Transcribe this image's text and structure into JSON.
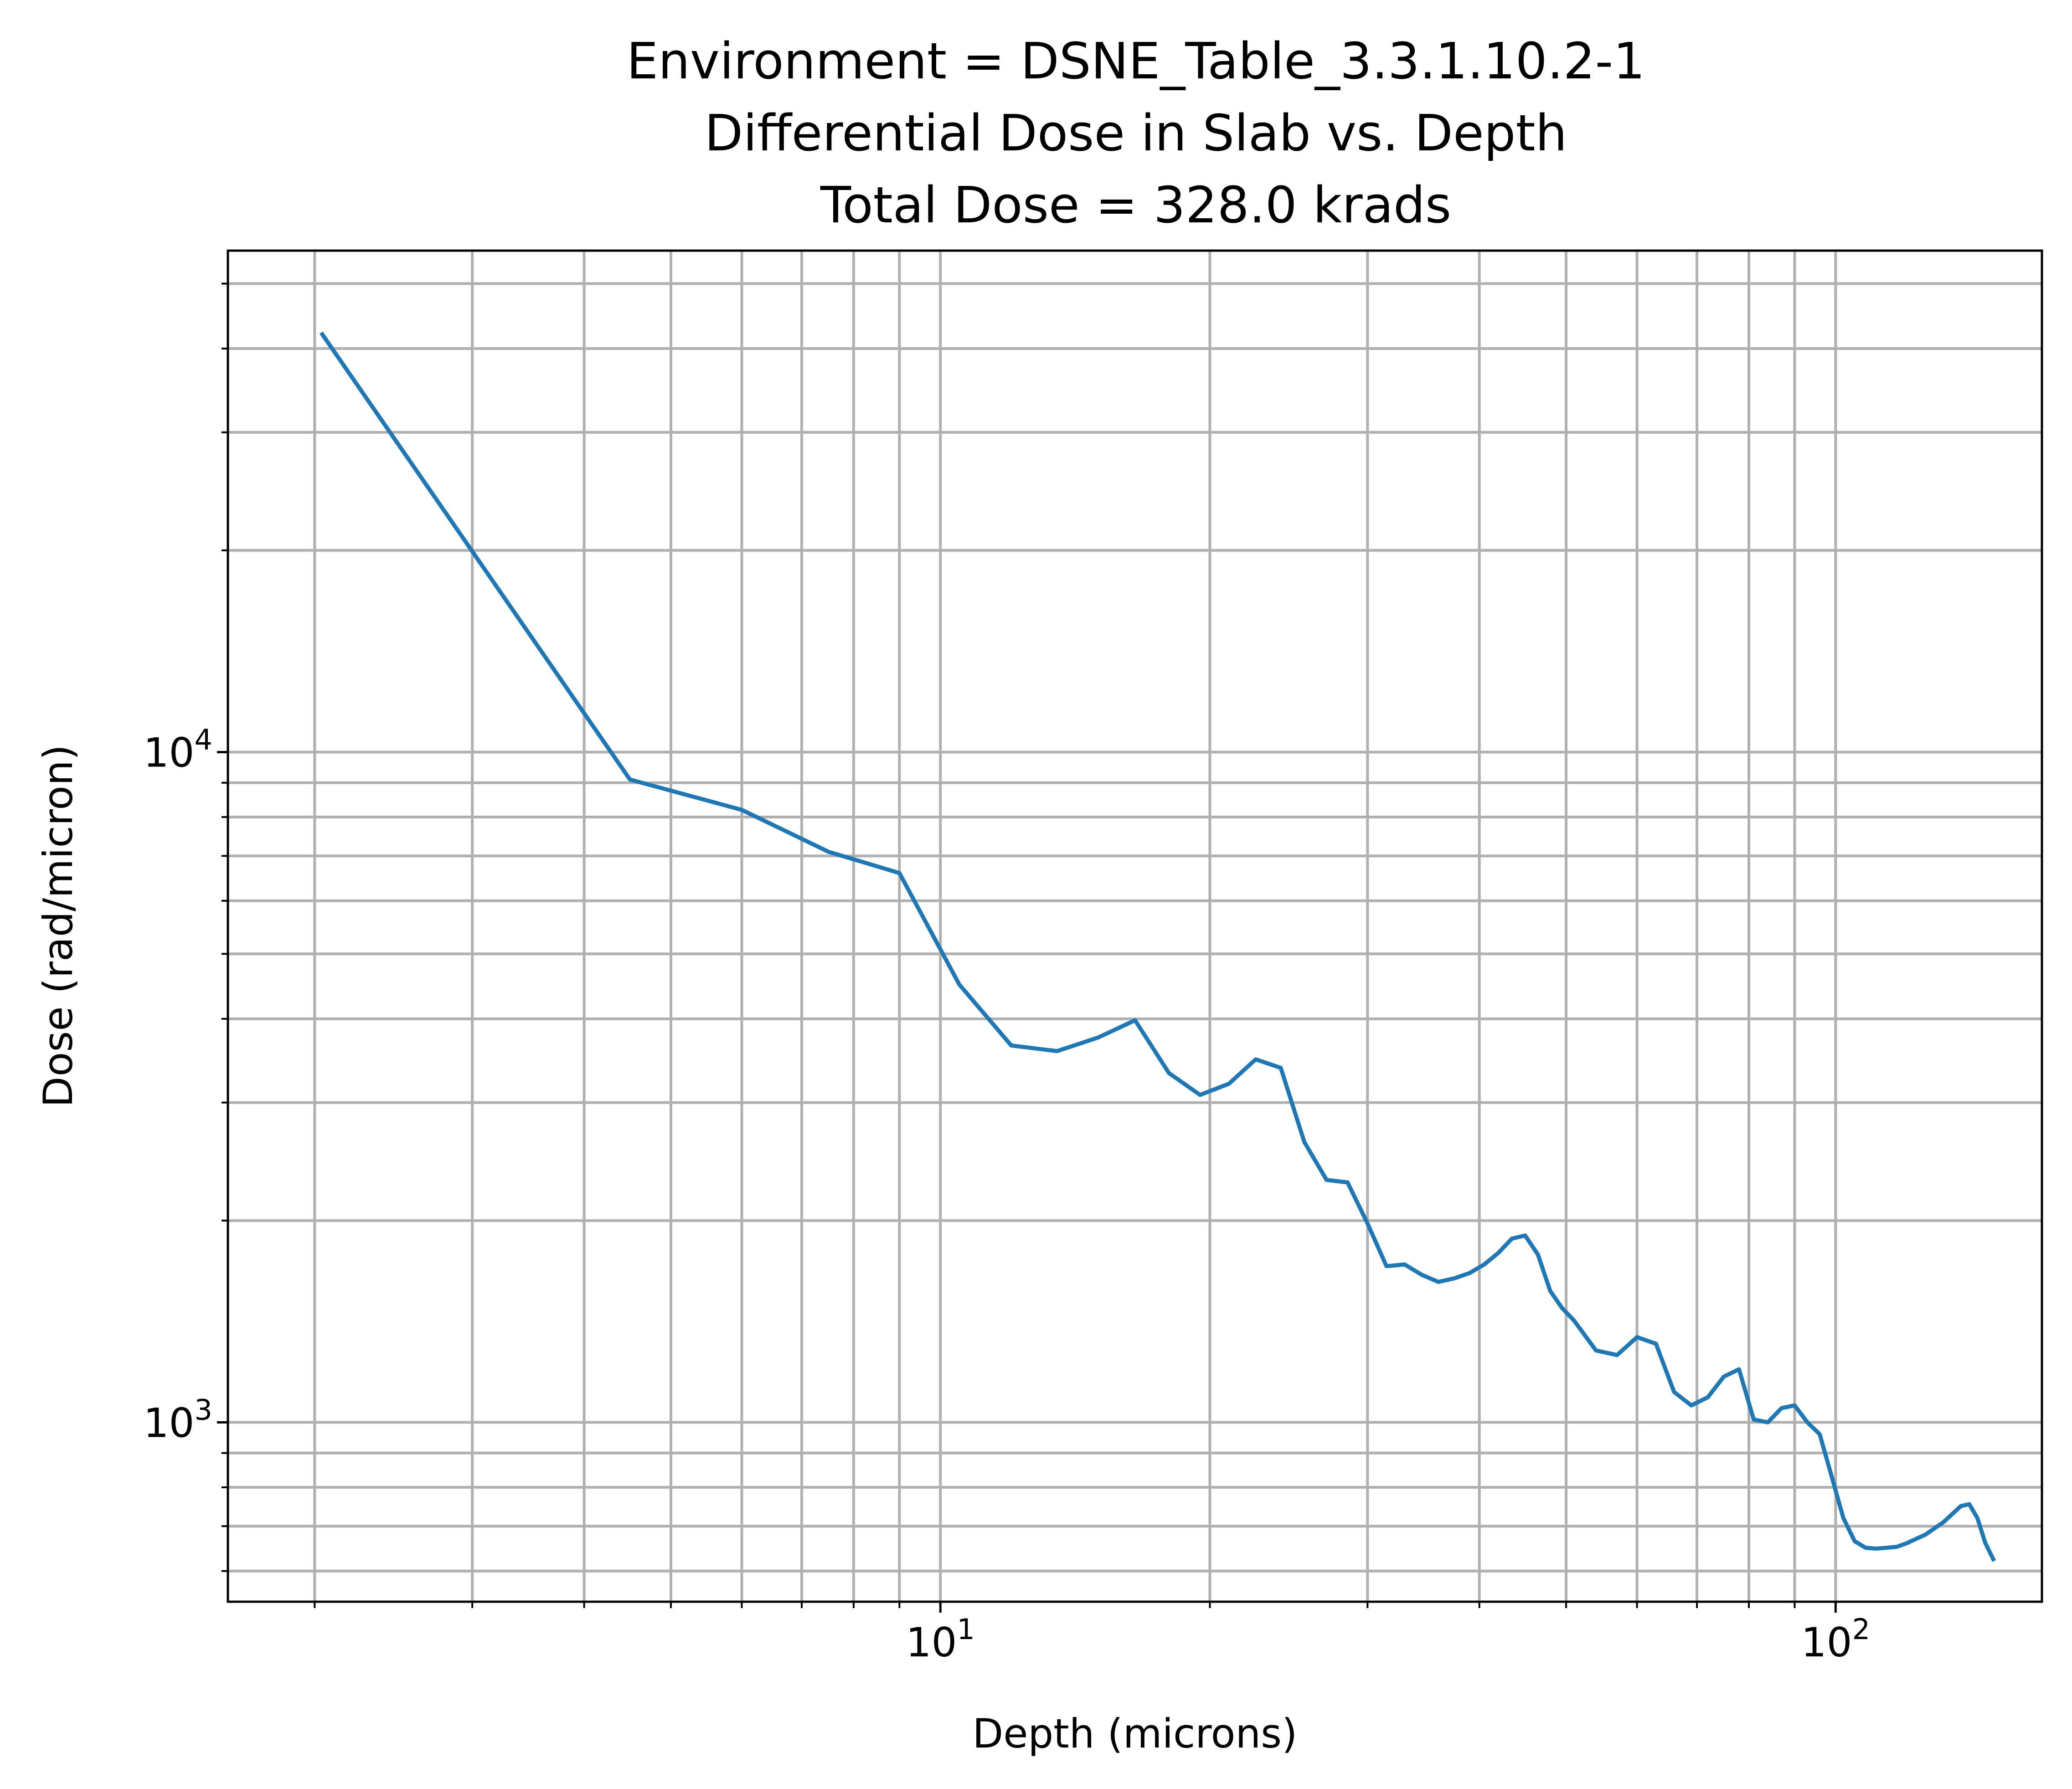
{
  "chart_data": {
    "type": "line",
    "title": [
      "Environment = DSNE_Table_3.3.1.10.2-1",
      "Differential Dose in Slab vs. Depth",
      "Total Dose = 328.0 krads"
    ],
    "xlabel": "Depth (microns)",
    "ylabel": "Dose (rad/micron)",
    "xscale": "log",
    "yscale": "log",
    "xlim": [
      1.6,
      170
    ],
    "ylim": [
      540,
      56000
    ],
    "grid": true,
    "grid_minor": true,
    "legend": "none",
    "line_color": "#1f77b4",
    "x_ticks": [
      {
        "base": "10",
        "exp": "1",
        "value": 10
      },
      {
        "base": "10",
        "exp": "2",
        "value": 100
      }
    ],
    "y_ticks": [
      {
        "base": "10",
        "exp": "3",
        "value": 1000
      },
      {
        "base": "10",
        "exp": "4",
        "value": 10000
      }
    ],
    "series": [
      {
        "x": [
          2.04,
          4.5,
          6.0,
          7.5,
          9.0,
          10.5,
          12.0,
          13.5,
          15.0,
          16.5,
          18.0,
          19.5,
          21.0,
          22.5,
          24.0,
          25.5,
          27.0,
          28.5,
          30.0,
          31.5,
          33.0,
          34.5,
          36.0,
          37.5,
          39.0,
          40.5,
          42.0,
          43.5,
          45.0,
          46.5,
          48.0,
          49.5,
          51.0,
          54.0,
          57.0,
          60.0,
          63.0,
          66.0,
          69.0,
          72.0,
          75.0,
          78.0,
          81.0,
          84.0,
          87.0,
          90.0,
          93.0,
          96.0,
          99.0,
          102.0,
          105.0,
          108.0,
          111.0,
          114.0,
          117.0,
          120.0,
          126.0,
          132.0,
          138.0,
          141.0,
          144.0,
          147.0,
          150.0
        ],
        "y": [
          42000,
          9100,
          8200,
          7100,
          6600,
          4500,
          3650,
          3580,
          3750,
          3980,
          3320,
          3080,
          3200,
          3480,
          3380,
          2620,
          2300,
          2280,
          1980,
          1710,
          1720,
          1660,
          1620,
          1640,
          1670,
          1720,
          1790,
          1880,
          1900,
          1780,
          1570,
          1480,
          1420,
          1280,
          1260,
          1340,
          1310,
          1110,
          1060,
          1090,
          1170,
          1200,
          1010,
          1000,
          1050,
          1060,
          1000,
          960,
          830,
          720,
          665,
          650,
          648,
          650,
          652,
          660,
          680,
          710,
          750,
          755,
          720,
          660,
          625
        ]
      }
    ]
  }
}
